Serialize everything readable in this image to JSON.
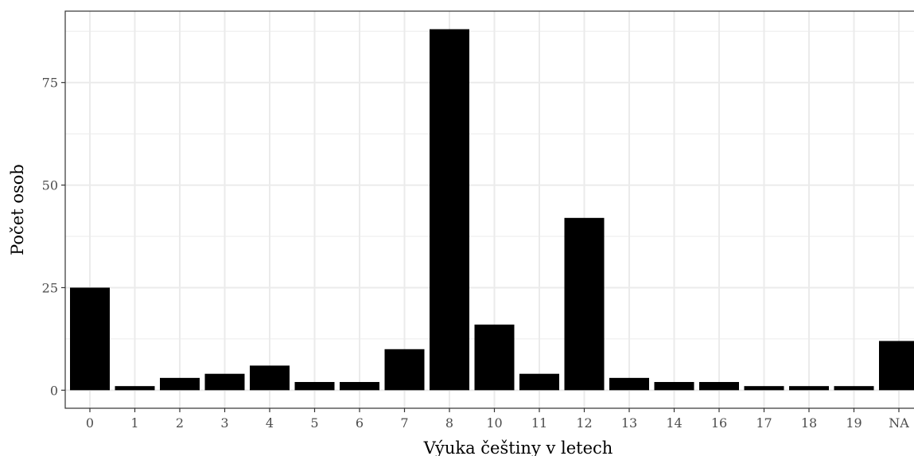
{
  "chart_data": {
    "type": "bar",
    "xlabel": "Výuka češtiny v letech",
    "ylabel": "Počet osob",
    "categories": [
      "0",
      "1",
      "2",
      "3",
      "4",
      "5",
      "6",
      "7",
      "8",
      "10",
      "11",
      "12",
      "13",
      "14",
      "16",
      "17",
      "18",
      "19",
      "NA"
    ],
    "values": [
      25,
      1,
      3,
      4,
      6,
      2,
      2,
      10,
      88,
      16,
      4,
      42,
      3,
      2,
      2,
      1,
      1,
      1,
      12
    ],
    "yticks": [
      0,
      25,
      50,
      75
    ],
    "ylim": [
      -4.4,
      92.4
    ],
    "grid": true,
    "bar_color": "#000000",
    "grid_color": "#ebebeb"
  }
}
